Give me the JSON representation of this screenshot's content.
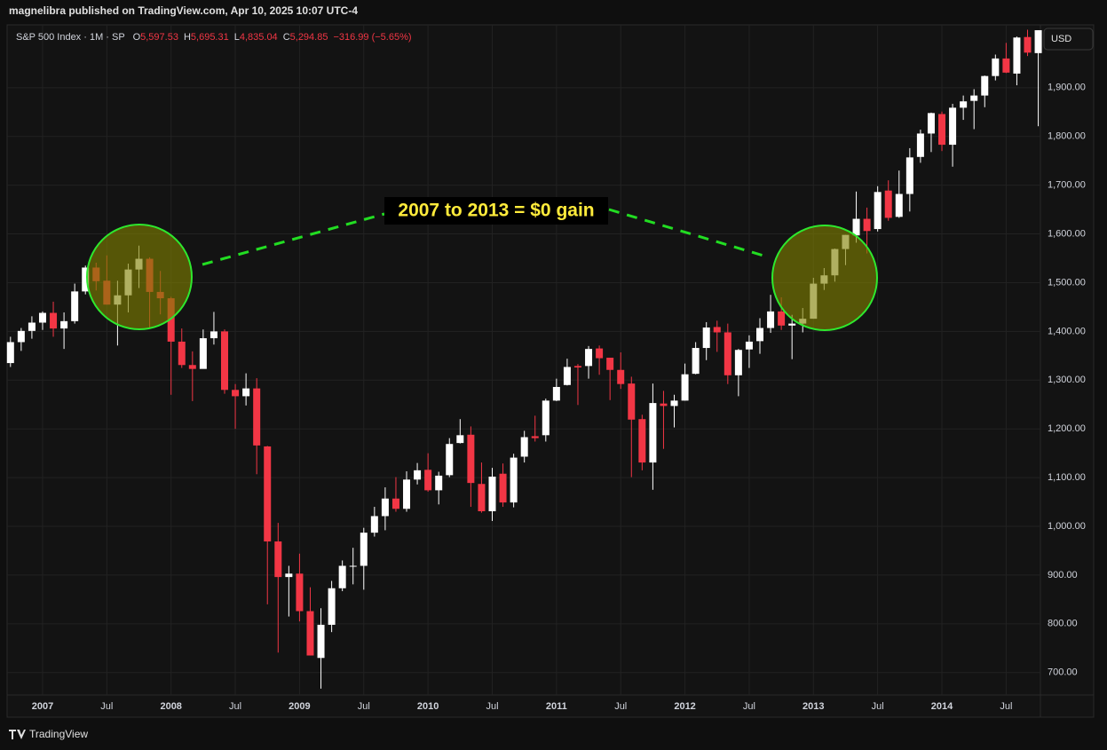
{
  "header": {
    "publisher": "magnelibra published on TradingView.com, Apr 10, 2025 10:07 UTC-4"
  },
  "footer": {
    "brand": "TradingView"
  },
  "chart_data": {
    "type": "candlestick",
    "legend_title": "S&P 500 Index · 1M · SP",
    "legend_fields": [
      {
        "key": "O",
        "value": "5,597.53"
      },
      {
        "key": "H",
        "value": "5,695.31"
      },
      {
        "key": "L",
        "value": "4,835.04"
      },
      {
        "key": "C",
        "value": "5,294.85"
      }
    ],
    "legend_change": "−316.99 (−5.65%)",
    "currency": "USD",
    "annotation": "2007 to 2013 = $0 gain",
    "up_color": "#ffffff",
    "down_color": "#f23645",
    "grid": true,
    "x": [
      "2006-10",
      "2006-11",
      "2006-12",
      "2007-01",
      "2007-02",
      "2007-03",
      "2007-04",
      "2007-05",
      "2007-06",
      "2007-07",
      "2007-08",
      "2007-09",
      "2007-10",
      "2007-11",
      "2007-12",
      "2008-01",
      "2008-02",
      "2008-03",
      "2008-04",
      "2008-05",
      "2008-06",
      "2008-07",
      "2008-08",
      "2008-09",
      "2008-10",
      "2008-11",
      "2008-12",
      "2009-01",
      "2009-02",
      "2009-03",
      "2009-04",
      "2009-05",
      "2009-06",
      "2009-07",
      "2009-08",
      "2009-09",
      "2009-10",
      "2009-11",
      "2009-12",
      "2010-01",
      "2010-02",
      "2010-03",
      "2010-04",
      "2010-05",
      "2010-06",
      "2010-07",
      "2010-08",
      "2010-09",
      "2010-10",
      "2010-11",
      "2010-12",
      "2011-01",
      "2011-02",
      "2011-03",
      "2011-04",
      "2011-05",
      "2011-06",
      "2011-07",
      "2011-08",
      "2011-09",
      "2011-10",
      "2011-11",
      "2011-12",
      "2012-01",
      "2012-02",
      "2012-03",
      "2012-04",
      "2012-05",
      "2012-06",
      "2012-07",
      "2012-08",
      "2012-09",
      "2012-10",
      "2012-11",
      "2012-12",
      "2013-01",
      "2013-02",
      "2013-03",
      "2013-04",
      "2013-05",
      "2013-06",
      "2013-07",
      "2013-08",
      "2013-09",
      "2013-10",
      "2013-11",
      "2013-12",
      "2014-01",
      "2014-02",
      "2014-03",
      "2014-04",
      "2014-05",
      "2014-06",
      "2014-07",
      "2014-08",
      "2014-09",
      "2014-10"
    ],
    "open": [
      1335,
      1378,
      1401,
      1418,
      1438,
      1406,
      1421,
      1482,
      1531,
      1504,
      1455,
      1474,
      1527,
      1549,
      1481,
      1468,
      1379,
      1331,
      1323,
      1386,
      1400,
      1280,
      1267,
      1283,
      1164,
      969,
      896,
      903,
      826,
      730,
      798,
      873,
      919,
      919,
      987,
      1021,
      1057,
      1036,
      1096,
      1116,
      1074,
      1105,
      1171,
      1188,
      1087,
      1031,
      1108,
      1049,
      1143,
      1185,
      1187,
      1258,
      1290,
      1329,
      1329,
      1365,
      1346,
      1321,
      1293,
      1220,
      1131,
      1252,
      1247,
      1258,
      1313,
      1366,
      1409,
      1398,
      1310,
      1363,
      1380,
      1407,
      1441,
      1412,
      1416,
      1426,
      1498,
      1515,
      1569,
      1597,
      1631,
      1610,
      1689,
      1635,
      1682,
      1758,
      1806,
      1846,
      1783,
      1859,
      1873,
      1884,
      1924,
      1960,
      1929,
      2004,
      1971
    ],
    "high": [
      1389,
      1407,
      1431,
      1441,
      1461,
      1439,
      1498,
      1535,
      1541,
      1556,
      1504,
      1539,
      1576,
      1552,
      1524,
      1471,
      1406,
      1359,
      1404,
      1440,
      1404,
      1292,
      1314,
      1304,
      1165,
      1007,
      919,
      944,
      875,
      832,
      888,
      930,
      956,
      997,
      1040,
      1080,
      1101,
      1113,
      1130,
      1150,
      1112,
      1181,
      1220,
      1205,
      1131,
      1120,
      1129,
      1149,
      1196,
      1227,
      1262,
      1303,
      1344,
      1333,
      1370,
      1371,
      1346,
      1357,
      1307,
      1229,
      1293,
      1278,
      1270,
      1334,
      1378,
      1419,
      1422,
      1416,
      1364,
      1392,
      1427,
      1475,
      1470,
      1434,
      1448,
      1510,
      1530,
      1570,
      1598,
      1687,
      1654,
      1698,
      1710,
      1730,
      1776,
      1814,
      1849,
      1851,
      1867,
      1884,
      1897,
      1925,
      1968,
      1992,
      2005,
      2019,
      2018
    ],
    "low": [
      1327,
      1360,
      1385,
      1403,
      1389,
      1364,
      1416,
      1476,
      1484,
      1455,
      1371,
      1439,
      1489,
      1407,
      1435,
      1270,
      1325,
      1257,
      1324,
      1373,
      1272,
      1200,
      1248,
      1107,
      840,
      741,
      815,
      805,
      735,
      667,
      783,
      867,
      881,
      870,
      979,
      992,
      1030,
      1030,
      1086,
      1071,
      1045,
      1101,
      1170,
      1040,
      1028,
      1011,
      1040,
      1039,
      1131,
      1174,
      1174,
      1257,
      1289,
      1249,
      1303,
      1311,
      1259,
      1282,
      1101,
      1115,
      1075,
      1159,
      1203,
      1258,
      1312,
      1341,
      1358,
      1292,
      1267,
      1325,
      1354,
      1397,
      1403,
      1343,
      1398,
      1426,
      1485,
      1502,
      1536,
      1582,
      1560,
      1605,
      1627,
      1633,
      1646,
      1746,
      1768,
      1770,
      1738,
      1834,
      1815,
      1860,
      1915,
      1930,
      1905,
      1965,
      1821
    ],
    "close": [
      1378,
      1401,
      1418,
      1438,
      1406,
      1421,
      1482,
      1531,
      1503,
      1455,
      1474,
      1527,
      1549,
      1481,
      1468,
      1379,
      1331,
      1323,
      1386,
      1400,
      1280,
      1267,
      1283,
      1166,
      969,
      896,
      903,
      826,
      735,
      798,
      873,
      919,
      919,
      987,
      1021,
      1057,
      1036,
      1096,
      1115,
      1074,
      1104,
      1169,
      1187,
      1089,
      1031,
      1102,
      1049,
      1141,
      1183,
      1181,
      1258,
      1286,
      1327,
      1326,
      1364,
      1345,
      1321,
      1292,
      1219,
      1131,
      1253,
      1247,
      1258,
      1312,
      1366,
      1408,
      1398,
      1310,
      1362,
      1379,
      1407,
      1441,
      1412,
      1416,
      1426,
      1498,
      1515,
      1569,
      1598,
      1631,
      1606,
      1686,
      1633,
      1682,
      1757,
      1806,
      1848,
      1783,
      1859,
      1872,
      1884,
      1924,
      1960,
      1931,
      2003,
      1972,
      2018
    ],
    "ylim": [
      654,
      2029
    ],
    "yticks": [
      {
        "value": 700,
        "label": "700.00"
      },
      {
        "value": 800,
        "label": "800.00"
      },
      {
        "value": 900,
        "label": "900.00"
      },
      {
        "value": 1000,
        "label": "1,000.00"
      },
      {
        "value": 1100,
        "label": "1,100.00"
      },
      {
        "value": 1200,
        "label": "1,200.00"
      },
      {
        "value": 1300,
        "label": "1,300.00"
      },
      {
        "value": 1400,
        "label": "1,400.00"
      },
      {
        "value": 1500,
        "label": "1,500.00"
      },
      {
        "value": 1600,
        "label": "1,600.00"
      },
      {
        "value": 1700,
        "label": "1,700.00"
      },
      {
        "value": 1800,
        "label": "1,800.00"
      },
      {
        "value": 1900,
        "label": "1,900.00"
      }
    ],
    "xticks": [
      {
        "value": "2007-01",
        "label": "2007"
      },
      {
        "value": "2007-07",
        "label": "Jul"
      },
      {
        "value": "2008-01",
        "label": "2008"
      },
      {
        "value": "2008-07",
        "label": "Jul"
      },
      {
        "value": "2009-01",
        "label": "2009"
      },
      {
        "value": "2009-07",
        "label": "Jul"
      },
      {
        "value": "2010-01",
        "label": "2010"
      },
      {
        "value": "2010-07",
        "label": "Jul"
      },
      {
        "value": "2011-01",
        "label": "2011"
      },
      {
        "value": "2011-07",
        "label": "Jul"
      },
      {
        "value": "2012-01",
        "label": "2012"
      },
      {
        "value": "2012-07",
        "label": "Jul"
      },
      {
        "value": "2013-01",
        "label": "2013"
      },
      {
        "value": "2013-07",
        "label": "Jul"
      },
      {
        "value": "2014-01",
        "label": "2014"
      },
      {
        "value": "2014-07",
        "label": "Jul"
      }
    ]
  }
}
